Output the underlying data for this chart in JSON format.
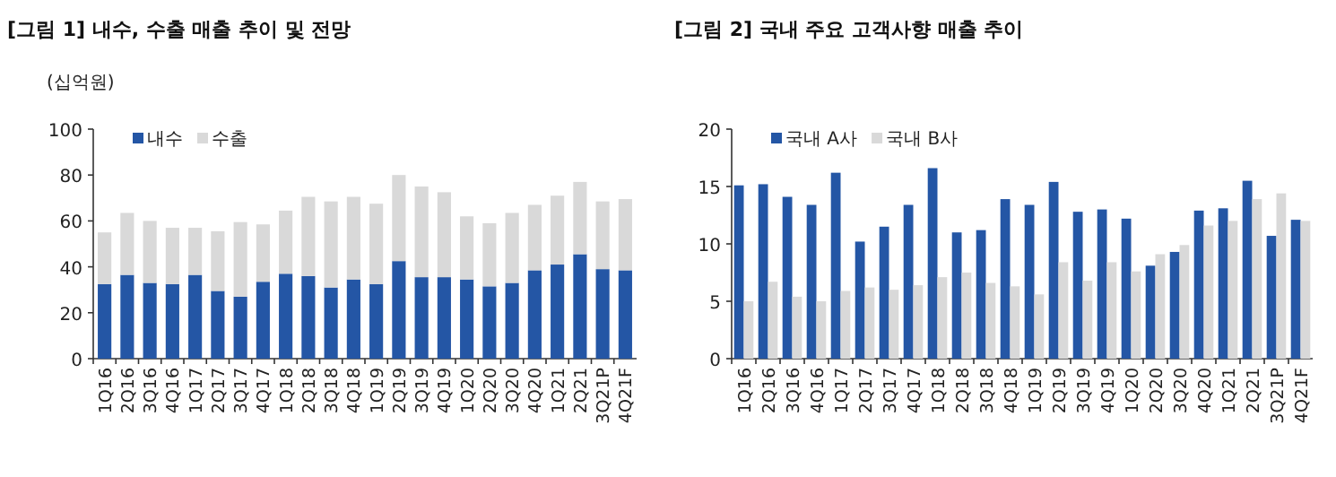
{
  "chart_data": [
    {
      "type": "bar",
      "title": "[그림 1] 내수, 수출 매출 추이 및 전망",
      "ylabel": "(십억원)",
      "stacked": true,
      "legend": "top left",
      "grid": false,
      "categories": [
        "1Q16",
        "2Q16",
        "3Q16",
        "4Q16",
        "1Q17",
        "2Q17",
        "3Q17",
        "4Q17",
        "1Q18",
        "2Q18",
        "3Q18",
        "4Q18",
        "1Q19",
        "2Q19",
        "3Q19",
        "4Q19",
        "1Q20",
        "2Q20",
        "3Q20",
        "4Q20",
        "1Q21",
        "2Q21",
        "3Q21P",
        "4Q21F"
      ],
      "ylim": [
        0,
        100
      ],
      "yticks": [
        0,
        20,
        40,
        60,
        80,
        100
      ],
      "series": [
        {
          "name": "내수",
          "color": "#2456a5",
          "values": [
            32.5,
            36.5,
            33,
            32.5,
            36.5,
            29.5,
            27,
            33.5,
            37,
            36,
            31,
            34.5,
            32.5,
            42.5,
            35.5,
            35.5,
            34.5,
            31.5,
            33,
            38.5,
            41,
            45.5,
            39,
            38.5
          ]
        },
        {
          "name": "수출",
          "color": "#d9d9d9",
          "values": [
            22.5,
            27,
            27,
            24.5,
            20.5,
            26,
            32.5,
            25,
            27.5,
            34.5,
            37.5,
            36,
            35,
            37.5,
            39.5,
            37,
            27.5,
            27.5,
            30.5,
            28.5,
            30,
            31.5,
            29.5,
            31
          ]
        }
      ]
    },
    {
      "type": "bar",
      "title": "[그림 2] 국내 주요 고객사향 매출 추이",
      "legend": "top left",
      "grid": false,
      "categories": [
        "1Q16",
        "2Q16",
        "3Q16",
        "4Q16",
        "1Q17",
        "2Q17",
        "3Q17",
        "4Q17",
        "1Q18",
        "2Q18",
        "3Q18",
        "4Q18",
        "1Q19",
        "2Q19",
        "3Q19",
        "4Q19",
        "1Q20",
        "2Q20",
        "3Q20",
        "4Q20",
        "1Q21",
        "2Q21",
        "3Q21P",
        "4Q21F"
      ],
      "ylim": [
        0,
        20
      ],
      "yticks": [
        0,
        5,
        10,
        15,
        20
      ],
      "series": [
        {
          "name": "국내 A사",
          "color": "#2456a5",
          "values": [
            15.1,
            15.2,
            14.1,
            13.4,
            16.2,
            10.2,
            11.5,
            13.4,
            16.6,
            11,
            11.2,
            13.9,
            13.4,
            15.4,
            12.8,
            13,
            12.2,
            8.1,
            9.3,
            12.9,
            13.1,
            15.5,
            10.7,
            12.1
          ]
        },
        {
          "name": "국내 B사",
          "color": "#d9d9d9",
          "values": [
            5,
            6.7,
            5.4,
            5,
            5.9,
            6.2,
            6,
            6.4,
            7.1,
            7.5,
            6.6,
            6.3,
            5.6,
            8.4,
            6.8,
            8.4,
            7.6,
            9.1,
            9.9,
            11.6,
            12,
            13.9,
            14.4,
            12
          ]
        }
      ]
    }
  ]
}
